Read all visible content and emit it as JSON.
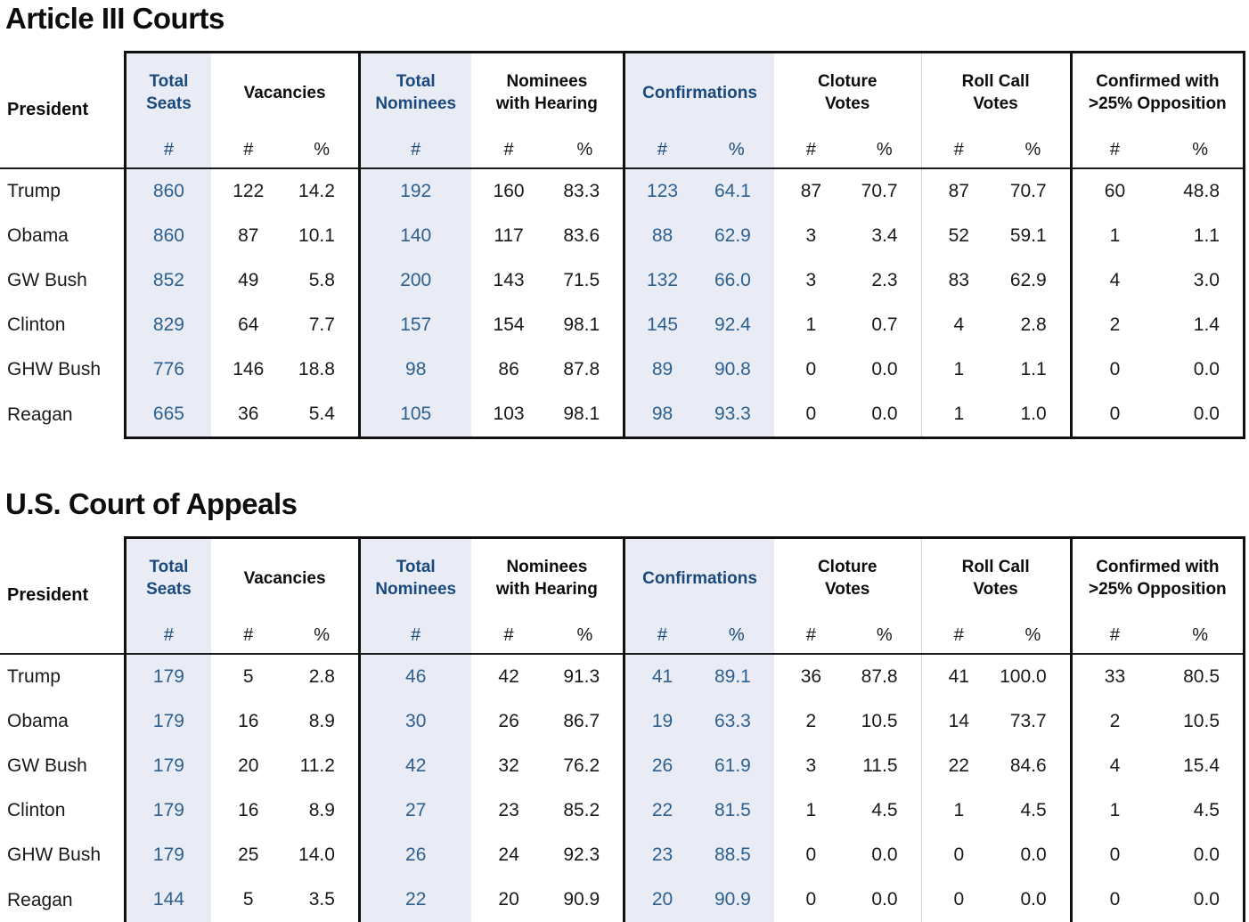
{
  "titles": {
    "table1": "Article III Courts",
    "table2": "U.S. Court of Appeals"
  },
  "colors": {
    "header_blue": "#1a4a7d",
    "data_blue": "#2d608f",
    "highlight_background": "#e9ecf4",
    "border_black": "#111111",
    "divider_grey": "#d3d7de"
  },
  "chart_data": [
    {
      "type": "table",
      "title": "Article III Courts",
      "president_header": "President",
      "column_groups": [
        {
          "label": "Total\nSeats",
          "columns": [
            "#"
          ],
          "highlighted": true
        },
        {
          "label": "Vacancies",
          "columns": [
            "#",
            "%"
          ],
          "highlighted": false
        },
        {
          "label": "Total\nNominees",
          "columns": [
            "#"
          ],
          "highlighted": true
        },
        {
          "label": "Nominees\nwith Hearing",
          "columns": [
            "#",
            "%"
          ],
          "highlighted": false
        },
        {
          "label": "Confirmations",
          "columns": [
            "#",
            "%"
          ],
          "highlighted": true
        },
        {
          "label": "Cloture\nVotes",
          "columns": [
            "#",
            "%"
          ],
          "highlighted": false
        },
        {
          "label": "Roll Call\nVotes",
          "columns": [
            "#",
            "%"
          ],
          "highlighted": false
        },
        {
          "label": "Confirmed with\n>25% Opposition",
          "columns": [
            "#",
            "%"
          ],
          "highlighted": false
        }
      ],
      "rows": [
        {
          "president": "Trump",
          "values": [
            "860",
            "122",
            "14.2",
            "192",
            "160",
            "83.3",
            "123",
            "64.1",
            "87",
            "70.7",
            "87",
            "70.7",
            "60",
            "48.8"
          ]
        },
        {
          "president": "Obama",
          "values": [
            "860",
            "87",
            "10.1",
            "140",
            "117",
            "83.6",
            "88",
            "62.9",
            "3",
            "3.4",
            "52",
            "59.1",
            "1",
            "1.1"
          ]
        },
        {
          "president": "GW Bush",
          "values": [
            "852",
            "49",
            "5.8",
            "200",
            "143",
            "71.5",
            "132",
            "66.0",
            "3",
            "2.3",
            "83",
            "62.9",
            "4",
            "3.0"
          ]
        },
        {
          "president": "Clinton",
          "values": [
            "829",
            "64",
            "7.7",
            "157",
            "154",
            "98.1",
            "145",
            "92.4",
            "1",
            "0.7",
            "4",
            "2.8",
            "2",
            "1.4"
          ]
        },
        {
          "president": "GHW Bush",
          "values": [
            "776",
            "146",
            "18.8",
            "98",
            "86",
            "87.8",
            "89",
            "90.8",
            "0",
            "0.0",
            "1",
            "1.1",
            "0",
            "0.0"
          ]
        },
        {
          "president": "Reagan",
          "values": [
            "665",
            "36",
            "5.4",
            "105",
            "103",
            "98.1",
            "98",
            "93.3",
            "0",
            "0.0",
            "1",
            "1.0",
            "0",
            "0.0"
          ]
        }
      ]
    },
    {
      "type": "table",
      "title": "U.S. Court of Appeals",
      "president_header": "President",
      "column_groups": [
        {
          "label": "Total\nSeats",
          "columns": [
            "#"
          ],
          "highlighted": true
        },
        {
          "label": "Vacancies",
          "columns": [
            "#",
            "%"
          ],
          "highlighted": false
        },
        {
          "label": "Total\nNominees",
          "columns": [
            "#"
          ],
          "highlighted": true
        },
        {
          "label": "Nominees\nwith Hearing",
          "columns": [
            "#",
            "%"
          ],
          "highlighted": false
        },
        {
          "label": "Confirmations",
          "columns": [
            "#",
            "%"
          ],
          "highlighted": true
        },
        {
          "label": "Cloture\nVotes",
          "columns": [
            "#",
            "%"
          ],
          "highlighted": false
        },
        {
          "label": "Roll Call\nVotes",
          "columns": [
            "#",
            "%"
          ],
          "highlighted": false
        },
        {
          "label": "Confirmed with\n>25% Opposition",
          "columns": [
            "#",
            "%"
          ],
          "highlighted": false
        }
      ],
      "rows": [
        {
          "president": "Trump",
          "values": [
            "179",
            "5",
            "2.8",
            "46",
            "42",
            "91.3",
            "41",
            "89.1",
            "36",
            "87.8",
            "41",
            "100.0",
            "33",
            "80.5"
          ]
        },
        {
          "president": "Obama",
          "values": [
            "179",
            "16",
            "8.9",
            "30",
            "26",
            "86.7",
            "19",
            "63.3",
            "2",
            "10.5",
            "14",
            "73.7",
            "2",
            "10.5"
          ]
        },
        {
          "president": "GW Bush",
          "values": [
            "179",
            "20",
            "11.2",
            "42",
            "32",
            "76.2",
            "26",
            "61.9",
            "3",
            "11.5",
            "22",
            "84.6",
            "4",
            "15.4"
          ]
        },
        {
          "president": "Clinton",
          "values": [
            "179",
            "16",
            "8.9",
            "27",
            "23",
            "85.2",
            "22",
            "81.5",
            "1",
            "4.5",
            "1",
            "4.5",
            "1",
            "4.5"
          ]
        },
        {
          "president": "GHW Bush",
          "values": [
            "179",
            "25",
            "14.0",
            "26",
            "24",
            "92.3",
            "23",
            "88.5",
            "0",
            "0.0",
            "0",
            "0.0",
            "0",
            "0.0"
          ]
        },
        {
          "president": "Reagan",
          "values": [
            "144",
            "5",
            "3.5",
            "22",
            "20",
            "90.9",
            "20",
            "90.9",
            "0",
            "0.0",
            "0",
            "0.0",
            "0",
            "0.0"
          ]
        }
      ]
    }
  ]
}
